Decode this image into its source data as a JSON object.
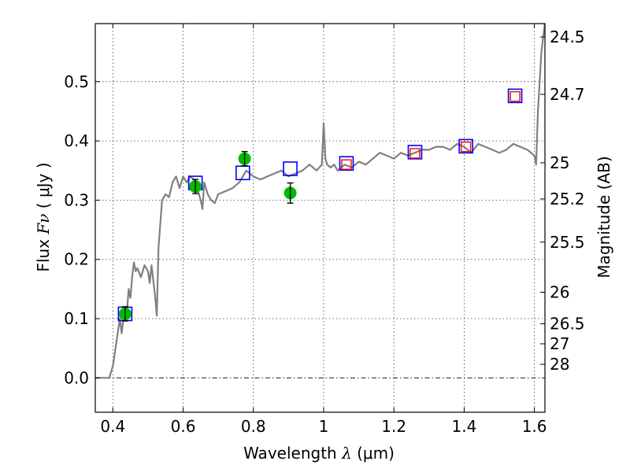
{
  "chart_data": {
    "type": "scatter",
    "title": "",
    "xlabel": "Wavelength",
    "xlabel_symbol": "λ",
    "xlabel_unit": "(μm)",
    "ylabel": "Flux",
    "ylabel_symbol": "Fν",
    "ylabel_unit": "( μJy )",
    "y2label": "Magnitude (AB)",
    "xlim": [
      0.35,
      1.63
    ],
    "ylim": [
      -0.058,
      0.598
    ],
    "x_ticks": [
      0.4,
      0.6,
      0.8,
      1.0,
      1.2,
      1.4,
      1.6
    ],
    "x_tick_labels": [
      "0.4",
      "0.6",
      "0.8",
      "1",
      "1.2",
      "1.4",
      "1.6"
    ],
    "y_ticks": [
      0.0,
      0.1,
      0.2,
      0.3,
      0.4,
      0.5
    ],
    "y_tick_labels": [
      "0.0",
      "0.1",
      "0.2",
      "0.3",
      "0.4",
      "0.5"
    ],
    "mag_ticks": [
      24.5,
      24.7,
      25,
      25.2,
      25.5,
      26,
      26.5,
      27,
      28
    ],
    "mag_tick_labels": [
      "24.5",
      "24.7",
      "25",
      "25.2",
      "25.5",
      "26",
      "26.5",
      "27",
      "28"
    ],
    "grid": true,
    "colors": {
      "spectrum": "#808080",
      "observed": "#00bb00",
      "model_box": "#0000ff",
      "synthetic_box": "#ff0000",
      "errorbar": "#000000"
    },
    "series": [
      {
        "name": "model-spectrum",
        "kind": "line",
        "x": [
          0.35,
          0.39,
          0.4,
          0.41,
          0.42,
          0.425,
          0.43,
          0.435,
          0.44,
          0.445,
          0.45,
          0.455,
          0.46,
          0.465,
          0.47,
          0.48,
          0.49,
          0.5,
          0.505,
          0.51,
          0.52,
          0.525,
          0.53,
          0.54,
          0.55,
          0.56,
          0.57,
          0.58,
          0.59,
          0.6,
          0.61,
          0.62,
          0.63,
          0.64,
          0.65,
          0.655,
          0.66,
          0.67,
          0.68,
          0.69,
          0.7,
          0.72,
          0.74,
          0.76,
          0.78,
          0.8,
          0.82,
          0.84,
          0.86,
          0.88,
          0.9,
          0.92,
          0.94,
          0.96,
          0.98,
          0.995,
          1.0,
          1.005,
          1.01,
          1.02,
          1.03,
          1.04,
          1.06,
          1.08,
          1.1,
          1.12,
          1.14,
          1.16,
          1.18,
          1.2,
          1.22,
          1.24,
          1.26,
          1.28,
          1.3,
          1.32,
          1.34,
          1.36,
          1.38,
          1.4,
          1.42,
          1.44,
          1.46,
          1.48,
          1.5,
          1.52,
          1.54,
          1.56,
          1.58,
          1.6,
          1.605,
          1.61,
          1.62,
          1.63
        ],
        "y": [
          0.0,
          0.0,
          0.02,
          0.06,
          0.1,
          0.075,
          0.1,
          0.12,
          0.11,
          0.15,
          0.135,
          0.17,
          0.195,
          0.18,
          0.185,
          0.17,
          0.19,
          0.18,
          0.16,
          0.19,
          0.14,
          0.105,
          0.22,
          0.3,
          0.31,
          0.305,
          0.33,
          0.34,
          0.32,
          0.34,
          0.33,
          0.34,
          0.335,
          0.32,
          0.3,
          0.285,
          0.33,
          0.31,
          0.3,
          0.295,
          0.31,
          0.315,
          0.32,
          0.33,
          0.35,
          0.34,
          0.335,
          0.34,
          0.345,
          0.35,
          0.34,
          0.345,
          0.35,
          0.36,
          0.35,
          0.36,
          0.43,
          0.37,
          0.36,
          0.355,
          0.36,
          0.35,
          0.36,
          0.355,
          0.365,
          0.36,
          0.37,
          0.38,
          0.375,
          0.37,
          0.38,
          0.375,
          0.38,
          0.385,
          0.385,
          0.39,
          0.39,
          0.385,
          0.395,
          0.39,
          0.38,
          0.395,
          0.39,
          0.385,
          0.38,
          0.385,
          0.395,
          0.39,
          0.385,
          0.375,
          0.36,
          0.45,
          0.55,
          0.6
        ]
      },
      {
        "name": "observed-photometry",
        "kind": "points-with-errorbars",
        "x": [
          0.435,
          0.635,
          0.775,
          0.905
        ],
        "y": [
          0.108,
          0.323,
          0.37,
          0.312
        ],
        "yerr": [
          0.012,
          0.012,
          0.012,
          0.017
        ]
      },
      {
        "name": "model-photometry",
        "kind": "blue-squares",
        "x": [
          0.435,
          0.635,
          0.77,
          0.905,
          1.065,
          1.26,
          1.405,
          1.545
        ],
        "y": [
          0.108,
          0.329,
          0.346,
          0.353,
          0.362,
          0.381,
          0.391,
          0.476
        ]
      },
      {
        "name": "synthetic-photometry",
        "kind": "red-squares",
        "x": [
          1.065,
          1.26,
          1.405,
          1.545
        ],
        "y": [
          0.36,
          0.379,
          0.39,
          0.475
        ]
      }
    ]
  }
}
